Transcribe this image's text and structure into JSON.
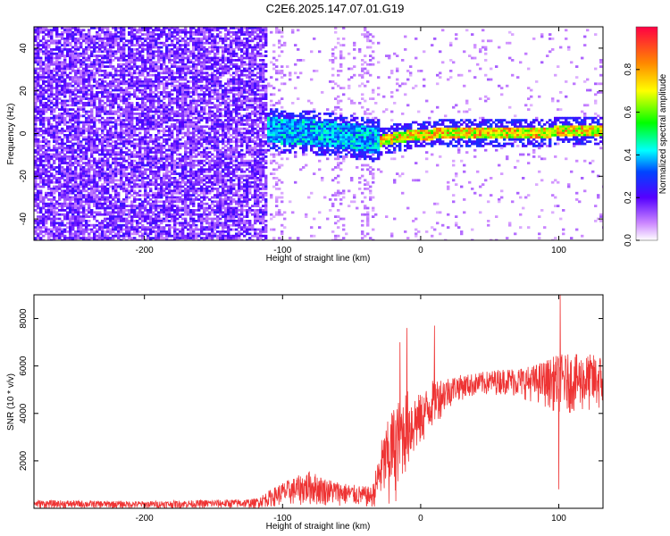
{
  "title": "C2E6.2025.147.07.01.G19",
  "colors": {
    "snr_line": "#ee3333",
    "axis": "#000000"
  },
  "chart_data": [
    {
      "type": "heatmap",
      "xlabel": "Height of straight line (km)",
      "ylabel": "Frequency (Hz)",
      "xlim": [
        -280,
        132
      ],
      "ylim": [
        -50,
        50
      ],
      "xticks": [
        -200,
        -100,
        0,
        100
      ],
      "yticks": [
        -40,
        -20,
        0,
        20,
        40
      ],
      "xtick_labels": [
        "-200",
        "-100",
        "0",
        "100"
      ],
      "ytick_labels": [
        "-40",
        "-20",
        "0",
        "20",
        "40"
      ],
      "colorbar": {
        "label": "Normalized spectral amplitude",
        "range": [
          0,
          1
        ],
        "ticks": [
          "0.0",
          "0.2",
          "0.4",
          "0.6",
          "0.8"
        ]
      },
      "regions": [
        {
          "x": [
            -280,
            -110
          ],
          "freq_range": [
            -50,
            50
          ],
          "amplitude": 0.15,
          "note_kind": "broadband noise"
        },
        {
          "x": [
            -110,
            -30
          ],
          "freq_center": 2,
          "freq_halfwidth": 8,
          "amplitude": 0.35
        },
        {
          "x": [
            -30,
            132
          ],
          "freq_center": 1,
          "freq_halfwidth": 3,
          "amplitude": 0.75
        }
      ],
      "ridge": [
        {
          "x": -110,
          "freq": 2
        },
        {
          "x": -80,
          "freq": 1
        },
        {
          "x": -50,
          "freq": -1
        },
        {
          "x": -30,
          "freq": -3
        },
        {
          "x": -15,
          "freq": -1
        },
        {
          "x": 0,
          "freq": 0
        },
        {
          "x": 30,
          "freq": 1
        },
        {
          "x": 80,
          "freq": 1
        },
        {
          "x": 130,
          "freq": 2
        }
      ]
    },
    {
      "type": "line",
      "xlabel": "Height of straight line (km)",
      "ylabel": "SNR (10 * v/v)",
      "xlim": [
        -280,
        132
      ],
      "ylim": [
        0,
        9000
      ],
      "xticks": [
        -200,
        -100,
        0,
        100
      ],
      "yticks": [
        2000,
        4000,
        6000,
        8000
      ],
      "xtick_labels": [
        "-200",
        "-100",
        "0",
        "100"
      ],
      "ytick_labels": [
        "2000",
        "4000",
        "6000",
        "8000"
      ],
      "series": [
        {
          "envelope": [
            {
              "x": -280,
              "low": 0,
              "high": 350
            },
            {
              "x": -200,
              "low": 0,
              "high": 300
            },
            {
              "x": -120,
              "low": 0,
              "high": 400
            },
            {
              "x": -100,
              "low": 100,
              "high": 1100
            },
            {
              "x": -80,
              "low": 100,
              "high": 1600
            },
            {
              "x": -70,
              "low": 100,
              "high": 1300
            },
            {
              "x": -50,
              "low": 100,
              "high": 1000
            },
            {
              "x": -35,
              "low": 0,
              "high": 900
            },
            {
              "x": -28,
              "low": 200,
              "high": 3000
            },
            {
              "x": -20,
              "low": 500,
              "high": 4300
            },
            {
              "x": -10,
              "low": 1500,
              "high": 5000
            },
            {
              "x": 0,
              "low": 2500,
              "high": 4800
            },
            {
              "x": 10,
              "low": 3500,
              "high": 5500
            },
            {
              "x": 25,
              "low": 4500,
              "high": 5600
            },
            {
              "x": 40,
              "low": 4700,
              "high": 5700
            },
            {
              "x": 60,
              "low": 4800,
              "high": 5900
            },
            {
              "x": 80,
              "low": 4500,
              "high": 6000
            },
            {
              "x": 100,
              "low": 4000,
              "high": 6500
            },
            {
              "x": 132,
              "low": 4000,
              "high": 6500
            }
          ],
          "spikes": [
            {
              "x": -10,
              "value": 7600
            },
            {
              "x": -15,
              "value": 7000
            },
            {
              "x": 101,
              "value": 9000
            },
            {
              "x": 100,
              "value": 800
            },
            {
              "x": 10,
              "value": 7700
            },
            {
              "x": -23,
              "value": 200
            },
            {
              "x": -18,
              "value": 300
            }
          ]
        }
      ]
    }
  ]
}
